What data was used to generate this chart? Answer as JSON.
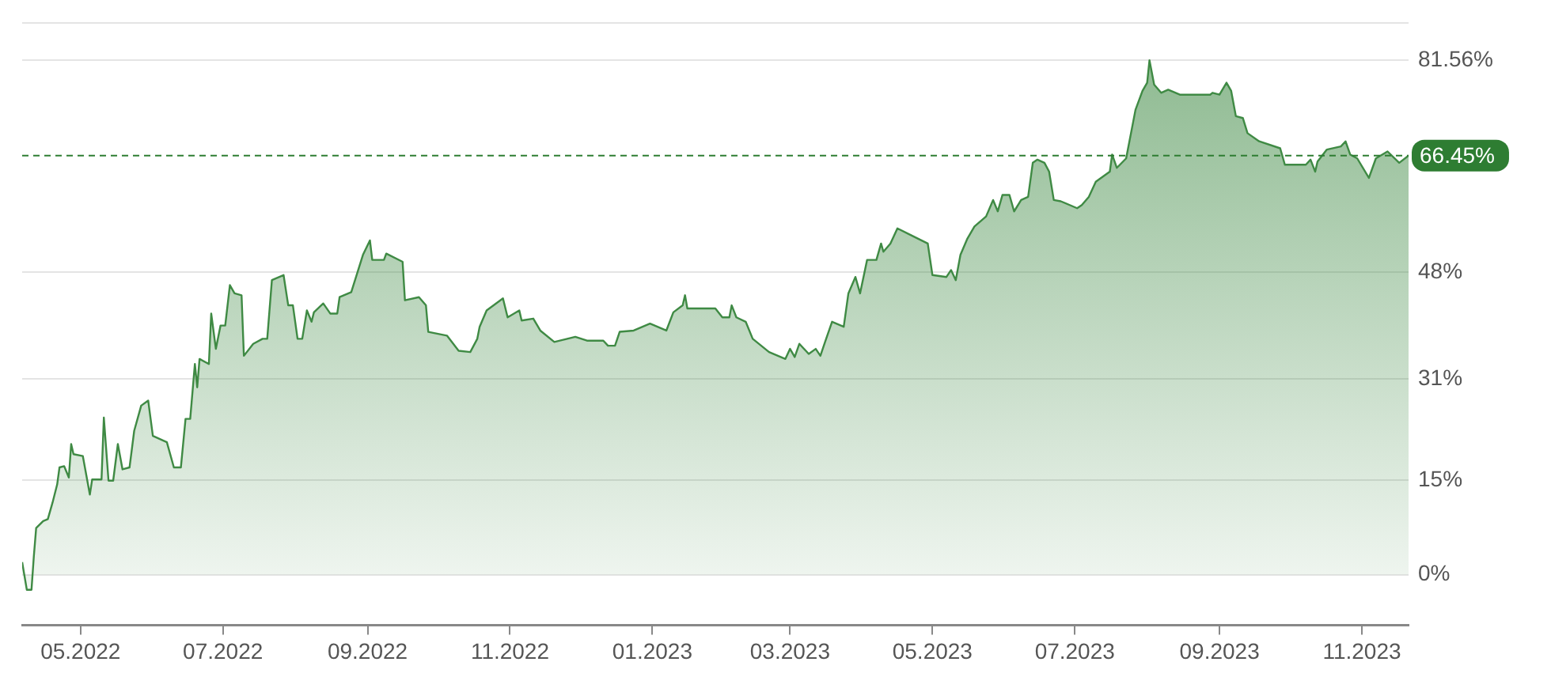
{
  "chart_data": {
    "type": "area",
    "x": [
      "2022-04-06",
      "2022-04-08",
      "2022-04-10",
      "2022-04-11",
      "2022-04-12",
      "2022-04-15",
      "2022-04-17",
      "2022-04-19",
      "2022-04-21",
      "2022-04-22",
      "2022-04-24",
      "2022-04-26",
      "2022-04-27",
      "2022-04-28",
      "2022-05-02",
      "2022-05-05",
      "2022-05-06",
      "2022-05-10",
      "2022-05-11",
      "2022-05-13",
      "2022-05-15",
      "2022-05-17",
      "2022-05-19",
      "2022-05-22",
      "2022-05-24",
      "2022-05-27",
      "2022-05-30",
      "2022-06-01",
      "2022-06-07",
      "2022-06-10",
      "2022-06-13",
      "2022-06-15",
      "2022-06-17",
      "2022-06-19",
      "2022-06-20",
      "2022-06-21",
      "2022-06-25",
      "2022-06-26",
      "2022-06-28",
      "2022-06-30",
      "2022-07-02",
      "2022-07-04",
      "2022-07-06",
      "2022-07-09",
      "2022-07-10",
      "2022-07-14",
      "2022-07-18",
      "2022-07-20",
      "2022-07-22",
      "2022-07-27",
      "2022-07-29",
      "2022-07-31",
      "2022-08-02",
      "2022-08-04",
      "2022-08-06",
      "2022-08-08",
      "2022-08-09",
      "2022-08-13",
      "2022-08-16",
      "2022-08-19",
      "2022-08-20",
      "2022-08-25",
      "2022-08-30",
      "2022-09-02",
      "2022-09-03",
      "2022-09-08",
      "2022-09-09",
      "2022-09-16",
      "2022-09-17",
      "2022-09-23",
      "2022-09-26",
      "2022-09-27",
      "2022-10-05",
      "2022-10-10",
      "2022-10-15",
      "2022-10-18",
      "2022-10-19",
      "2022-10-22",
      "2022-10-29",
      "2022-10-31",
      "2022-11-05",
      "2022-11-06",
      "2022-11-11",
      "2022-11-14",
      "2022-11-20",
      "2022-11-29",
      "2022-12-04",
      "2022-12-11",
      "2022-12-13",
      "2022-12-16",
      "2022-12-18",
      "2022-12-24",
      "2022-12-31",
      "2023-01-07",
      "2023-01-10",
      "2023-01-14",
      "2023-01-15",
      "2023-01-16",
      "2023-01-28",
      "2023-01-31",
      "2023-02-03",
      "2023-02-04",
      "2023-02-06",
      "2023-02-10",
      "2023-02-13",
      "2023-02-20",
      "2023-02-27",
      "2023-03-01",
      "2023-03-03",
      "2023-03-05",
      "2023-03-09",
      "2023-03-12",
      "2023-03-14",
      "2023-03-16",
      "2023-03-19",
      "2023-03-24",
      "2023-03-26",
      "2023-03-29",
      "2023-03-31",
      "2023-04-03",
      "2023-04-07",
      "2023-04-09",
      "2023-04-10",
      "2023-04-13",
      "2023-04-16",
      "2023-04-22",
      "2023-04-29",
      "2023-05-01",
      "2023-05-07",
      "2023-05-09",
      "2023-05-11",
      "2023-05-13",
      "2023-05-16",
      "2023-05-19",
      "2023-05-24",
      "2023-05-27",
      "2023-05-29",
      "2023-05-31",
      "2023-06-03",
      "2023-06-05",
      "2023-06-08",
      "2023-06-11",
      "2023-06-13",
      "2023-06-15",
      "2023-06-18",
      "2023-06-20",
      "2023-06-22",
      "2023-06-25",
      "2023-07-02",
      "2023-07-04",
      "2023-07-07",
      "2023-07-10",
      "2023-07-16",
      "2023-07-17",
      "2023-07-19",
      "2023-07-23",
      "2023-07-27",
      "2023-07-30",
      "2023-08-01",
      "2023-08-02",
      "2023-08-04",
      "2023-08-07",
      "2023-08-10",
      "2023-08-15",
      "2023-08-28",
      "2023-08-29",
      "2023-09-01",
      "2023-09-04",
      "2023-09-06",
      "2023-09-08",
      "2023-09-11",
      "2023-09-13",
      "2023-09-18",
      "2023-09-27",
      "2023-09-29",
      "2023-10-08",
      "2023-10-10",
      "2023-10-12",
      "2023-10-13",
      "2023-10-17",
      "2023-10-23",
      "2023-10-25",
      "2023-10-27",
      "2023-10-30",
      "2023-11-04",
      "2023-11-07",
      "2023-11-12",
      "2023-11-17",
      "2023-11-21"
    ],
    "series": [
      {
        "color": "#3f8a44",
        "values": [
          2.0,
          -2.4,
          -2.4,
          2.9,
          7.4,
          8.5,
          8.8,
          11.4,
          14.3,
          17,
          17.2,
          15.4,
          20.7,
          19.1,
          18.8,
          12.7,
          15.1,
          15.1,
          24.9,
          14.9,
          14.9,
          20.7,
          16.7,
          17,
          22.8,
          26.8,
          27.6,
          22,
          21,
          17,
          17,
          24.7,
          24.7,
          33.4,
          29.7,
          34.2,
          33.4,
          41.4,
          35.8,
          39.5,
          39.5,
          45.9,
          44.6,
          44.3,
          34.7,
          36.6,
          37.4,
          37.4,
          46.7,
          47.5,
          42.7,
          42.7,
          37.4,
          37.4,
          41.9,
          40.1,
          41.6,
          43,
          41.4,
          41.4,
          44,
          44.8,
          50.7,
          53,
          49.9,
          49.9,
          50.9,
          49.6,
          43.5,
          44,
          42.7,
          38.5,
          37.9,
          35.5,
          35.3,
          37.4,
          39.3,
          41.9,
          43.8,
          40.8,
          41.9,
          40.3,
          40.6,
          38.7,
          36.9,
          37.7,
          37.1,
          37.1,
          36.3,
          36.3,
          38.5,
          38.7,
          39.8,
          38.7,
          41.6,
          42.7,
          44.3,
          42.2,
          42.2,
          40.8,
          40.8,
          42.7,
          40.8,
          40.1,
          37.4,
          35.3,
          34.2,
          35.8,
          34.5,
          36.6,
          35,
          35.8,
          34.7,
          36.9,
          40.1,
          39.3,
          44.6,
          47.2,
          44.6,
          49.9,
          49.9,
          52.5,
          51.2,
          52.5,
          54.9,
          53.8,
          52.5,
          47.5,
          47.2,
          48.3,
          46.7,
          50.7,
          53.3,
          55.2,
          56.8,
          59.4,
          57.6,
          60.2,
          60.2,
          57.6,
          59.4,
          59.9,
          65.3,
          65.8,
          65.3,
          63.9,
          59.4,
          59.2,
          58.1,
          58.6,
          59.9,
          62.3,
          63.9,
          66.6,
          64.5,
          66,
          73.7,
          76.7,
          78,
          81.56,
          77.7,
          76.4,
          76.9,
          76.1,
          76.1,
          76.4,
          76.1,
          78,
          76.7,
          72.7,
          72.4,
          70,
          68.7,
          67.6,
          65,
          65,
          65.8,
          63.9,
          65.5,
          67.4,
          67.9,
          68.7,
          66.6,
          66,
          62.9,
          66,
          67.1,
          65.3,
          66.45
        ]
      }
    ],
    "xlim": [
      "2022-04-06",
      "2023-11-21"
    ],
    "xticks": [
      {
        "value": "2022-05",
        "label": "05.2022"
      },
      {
        "value": "2022-07",
        "label": "07.2022"
      },
      {
        "value": "2022-09",
        "label": "09.2022"
      },
      {
        "value": "2022-11",
        "label": "11.2022"
      },
      {
        "value": "2023-01",
        "label": "01.2023"
      },
      {
        "value": "2023-03",
        "label": "03.2023"
      },
      {
        "value": "2023-05",
        "label": "05.2023"
      },
      {
        "value": "2023-07",
        "label": "07.2023"
      },
      {
        "value": "2023-09",
        "label": "09.2023"
      },
      {
        "value": "2023-11",
        "label": "11.2023"
      }
    ],
    "ylim": [
      -8,
      87.5
    ],
    "yticks": [
      {
        "value": 0,
        "label": "0%"
      },
      {
        "value": 15,
        "label": "15%"
      },
      {
        "value": 31,
        "label": "31%"
      },
      {
        "value": 48,
        "label": "48%"
      },
      {
        "value": 81.56,
        "label": "81.56%"
      },
      {
        "value": 87.5,
        "label": null
      }
    ],
    "ref_lines": [
      {
        "axis": "y",
        "value": 66.45,
        "label": "66.45%",
        "color": "#2e7d32",
        "line_style": "dashed"
      }
    ],
    "grid": "y",
    "legend": false
  }
}
